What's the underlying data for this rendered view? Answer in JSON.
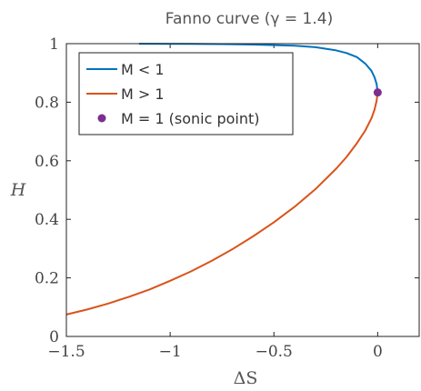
{
  "chart_data": {
    "type": "line",
    "title": "Fanno curve (γ = 1.4)",
    "xlabel": "ΔS",
    "ylabel": "H",
    "xlim": [
      -1.5,
      0.2
    ],
    "ylim": [
      0,
      1
    ],
    "x_ticks": [
      "−1.5",
      "−1",
      "−0.5",
      "0"
    ],
    "y_ticks": [
      "0",
      "0.2",
      "0.4",
      "0.6",
      "0.8",
      "1"
    ],
    "x_tick_values": [
      -1.5,
      -1,
      -0.5,
      0
    ],
    "y_tick_values": [
      0,
      0.2,
      0.4,
      0.6,
      0.8,
      1
    ],
    "grid": false,
    "legend_position": "top-left",
    "gamma": 1.4,
    "series": [
      {
        "name": "M < 1",
        "color": "#0072BD",
        "points": [
          [
            -1.15,
            0.9996
          ],
          [
            -0.9,
            0.9992
          ],
          [
            -0.75,
            0.9985
          ],
          [
            -0.6,
            0.997
          ],
          [
            -0.5,
            0.995
          ],
          [
            -0.4,
            0.993
          ],
          [
            -0.3,
            0.988
          ],
          [
            -0.2,
            0.977
          ],
          [
            -0.15,
            0.968
          ],
          [
            -0.1,
            0.954
          ],
          [
            -0.06,
            0.932
          ],
          [
            -0.03,
            0.907
          ],
          [
            -0.015,
            0.885
          ],
          [
            -0.005,
            0.862
          ],
          [
            0,
            0.8333
          ]
        ]
      },
      {
        "name": "M > 1",
        "color": "#D95319",
        "points": [
          [
            -1.5,
            0.075
          ],
          [
            -1.4,
            0.092
          ],
          [
            -1.3,
            0.112
          ],
          [
            -1.2,
            0.135
          ],
          [
            -1.1,
            0.16
          ],
          [
            -1.0,
            0.19
          ],
          [
            -0.9,
            0.222
          ],
          [
            -0.8,
            0.258
          ],
          [
            -0.7,
            0.298
          ],
          [
            -0.6,
            0.342
          ],
          [
            -0.5,
            0.39
          ],
          [
            -0.4,
            0.443
          ],
          [
            -0.3,
            0.503
          ],
          [
            -0.2,
            0.573
          ],
          [
            -0.15,
            0.613
          ],
          [
            -0.1,
            0.66
          ],
          [
            -0.06,
            0.703
          ],
          [
            -0.03,
            0.745
          ],
          [
            -0.015,
            0.775
          ],
          [
            -0.005,
            0.805
          ],
          [
            0,
            0.8333
          ]
        ]
      },
      {
        "name": "M = 1 (sonic point)",
        "color": "#7E2F8E",
        "marker": "dot",
        "points": [
          [
            0,
            0.8333
          ]
        ]
      }
    ]
  }
}
